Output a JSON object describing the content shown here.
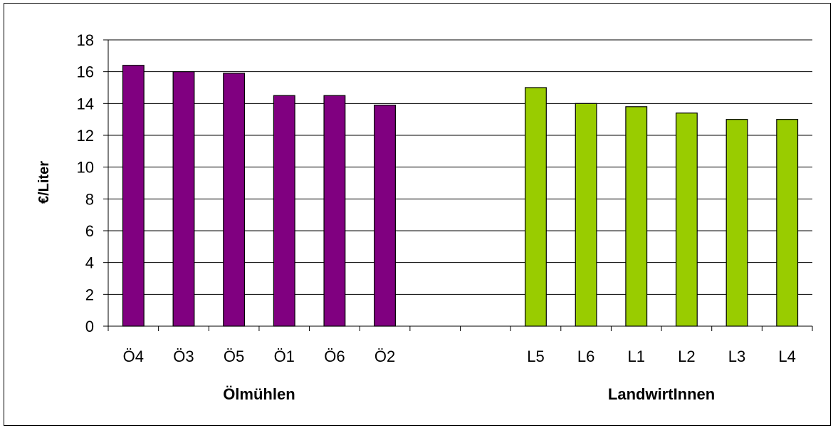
{
  "chart_data": {
    "type": "bar",
    "ylabel": "€/Liter",
    "ylim": [
      0,
      18
    ],
    "yticks": [
      0,
      2,
      4,
      6,
      8,
      10,
      12,
      14,
      16,
      18
    ],
    "grid": true,
    "legend": "none",
    "categories": [
      "Ö4",
      "Ö3",
      "Ö5",
      "Ö1",
      "Ö6",
      "Ö2",
      "",
      "",
      "L5",
      "L6",
      "L1",
      "L2",
      "L3",
      "L4"
    ],
    "groups": [
      {
        "name": "Ölmühlen",
        "color": "#800080",
        "categories": [
          "Ö4",
          "Ö3",
          "Ö5",
          "Ö1",
          "Ö6",
          "Ö2"
        ],
        "values": [
          16.4,
          16.0,
          15.9,
          14.5,
          14.5,
          13.9
        ]
      },
      {
        "name": "LandwirtInnen",
        "color": "#99CC00",
        "categories": [
          "L5",
          "L6",
          "L1",
          "L2",
          "L3",
          "L4"
        ],
        "values": [
          15.0,
          14.0,
          13.8,
          13.4,
          13.0,
          13.0
        ]
      }
    ]
  }
}
